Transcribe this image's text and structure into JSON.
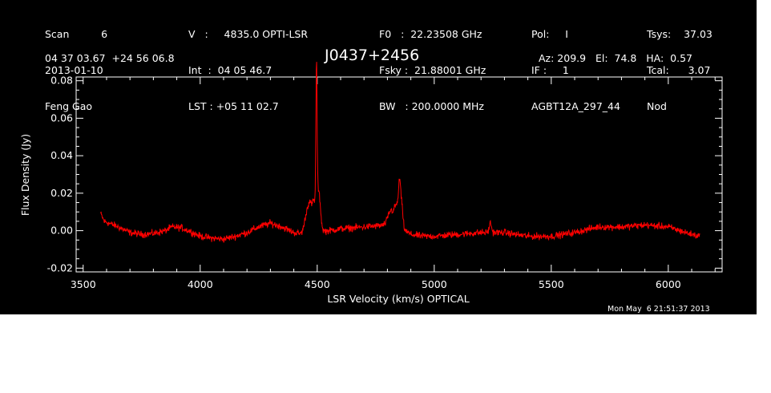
{
  "header": {
    "col1": [
      "Scan          6",
      "2013-01-10",
      "Feng Gao"
    ],
    "col2": [
      "V   :     4835.0 OPTI-LSR",
      "Int  :  04 05 46.7",
      "LST : +05 11 02.7"
    ],
    "col3": [
      "F0   :  22.23508 GHz",
      "Fsky :  21.88001 GHz",
      "BW   : 200.0000 MHz"
    ],
    "col4": [
      "Pol:     I",
      "IF :     1",
      "AGBT12A_297_44"
    ],
    "col5": [
      "Tsys:    37.03",
      "Tcal:      3.07",
      "Nod"
    ]
  },
  "coords": "04 37 03.67  +24 56 06.8",
  "source": "J0437+2456",
  "pointing": "Az: 209.9   El:  74.8   HA:  0.57",
  "timestamp": "Mon May  6 21:51:37 2013",
  "colors": {
    "background": "#000000",
    "axes": "#ffffff",
    "trace": "#ff0000"
  },
  "chart_data": {
    "type": "line",
    "xlabel": "LSR Velocity (km/s) OPTICAL",
    "ylabel": "Flux Density (Jy)",
    "xlim": [
      3470,
      6230
    ],
    "ylim": [
      -0.022,
      0.082
    ],
    "xticks": [
      3500,
      4000,
      4500,
      5000,
      5500,
      6000
    ],
    "yticks": [
      -0.02,
      0.0,
      0.02,
      0.04,
      0.06,
      0.08
    ],
    "ytick_labels": [
      "-0.02",
      "0.00",
      "0.02",
      "0.04",
      "0.06",
      "0.08"
    ],
    "x_range": [
      3575,
      6135
    ],
    "baseline": [
      [
        3575,
        0.009
      ],
      [
        3590,
        0.005
      ],
      [
        3650,
        0.002
      ],
      [
        3700,
        -0.001
      ],
      [
        3750,
        -0.002
      ],
      [
        3800,
        -0.0015
      ],
      [
        3850,
        0.0
      ],
      [
        3880,
        0.002
      ],
      [
        3920,
        0.0015
      ],
      [
        3960,
        -0.0005
      ],
      [
        4000,
        -0.003
      ],
      [
        4050,
        -0.004
      ],
      [
        4100,
        -0.0045
      ],
      [
        4150,
        -0.003
      ],
      [
        4200,
        -0.001
      ],
      [
        4250,
        0.002
      ],
      [
        4300,
        0.004
      ],
      [
        4350,
        0.002
      ],
      [
        4400,
        -0.001
      ],
      [
        4440,
        -0.002
      ],
      [
        4550,
        0.0
      ],
      [
        4600,
        0.001
      ],
      [
        4700,
        0.002
      ],
      [
        4800,
        0.003
      ],
      [
        4850,
        0.002
      ],
      [
        4900,
        -0.002
      ],
      [
        4950,
        -0.003
      ],
      [
        5000,
        -0.003
      ],
      [
        5100,
        -0.002
      ],
      [
        5200,
        -0.001
      ],
      [
        5300,
        -0.001
      ],
      [
        5400,
        -0.003
      ],
      [
        5500,
        -0.003
      ],
      [
        5600,
        -0.001
      ],
      [
        5700,
        0.002
      ],
      [
        5800,
        0.002
      ],
      [
        5900,
        0.003
      ],
      [
        6000,
        0.002
      ],
      [
        6050,
        0.0
      ],
      [
        6100,
        -0.002
      ],
      [
        6135,
        -0.003
      ]
    ],
    "features": [
      {
        "center": 4455,
        "width": 10,
        "peak": 0.01
      },
      {
        "center": 4470,
        "width": 8,
        "peak": 0.013
      },
      {
        "center": 4483,
        "width": 5,
        "peak": 0.008
      },
      {
        "center": 4497,
        "width": 2.5,
        "peak": 0.072
      },
      {
        "center": 4499,
        "width": 10,
        "peak": 0.02
      },
      {
        "center": 4510,
        "width": 6,
        "peak": 0.008
      },
      {
        "center": 4815,
        "width": 12,
        "peak": 0.008
      },
      {
        "center": 4838,
        "width": 8,
        "peak": 0.01
      },
      {
        "center": 4852,
        "width": 5,
        "peak": 0.022
      },
      {
        "center": 4862,
        "width": 5,
        "peak": 0.01
      },
      {
        "center": 5240,
        "width": 5,
        "peak": 0.005
      }
    ],
    "noise_jy": 0.0018
  }
}
